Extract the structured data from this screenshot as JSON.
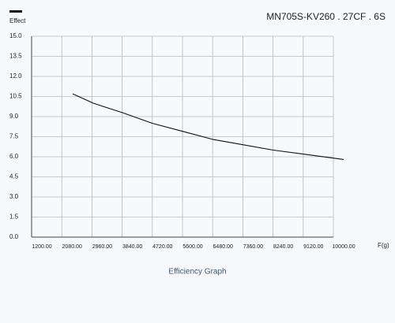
{
  "chart_data": {
    "type": "line",
    "title": "MN705S-KV260 . 27CF . 6S",
    "subtitle": "Efficiency Graph",
    "ylabel": "Effect",
    "xlabel": "F(g)",
    "x": [
      2400,
      3000,
      3840,
      4720,
      5600,
      6480,
      7360,
      8240,
      9120,
      10300
    ],
    "values": [
      10.7,
      10.0,
      9.3,
      8.5,
      7.9,
      7.3,
      6.9,
      6.5,
      6.2,
      5.8
    ],
    "color": "#111111",
    "xlim": [
      1200,
      10000
    ],
    "xticks": [
      {
        "value": 1200,
        "label": "1200.00"
      },
      {
        "value": 2080,
        "label": "2080.00"
      },
      {
        "value": 2960,
        "label": "2960.00"
      },
      {
        "value": 3840,
        "label": "3840.00"
      },
      {
        "value": 4720,
        "label": "4720.00"
      },
      {
        "value": 5600,
        "label": "5600.00"
      },
      {
        "value": 6480,
        "label": "6480.00"
      },
      {
        "value": 7360,
        "label": "7360.00"
      },
      {
        "value": 8240,
        "label": "8240.00"
      },
      {
        "value": 9120,
        "label": "9120.00"
      },
      {
        "value": 10000,
        "label": "10000.00"
      }
    ],
    "ylim": [
      0,
      15
    ],
    "yticks": [
      {
        "value": 0,
        "label": "0.0"
      },
      1.5,
      {
        "value": 3,
        "label": "3.0"
      },
      4.5,
      {
        "value": 6,
        "label": "6.0"
      },
      7.5,
      {
        "value": 9,
        "label": "9.0"
      },
      10.5,
      {
        "value": 12,
        "label": "12.0"
      },
      13.5,
      {
        "value": 15,
        "label": "15.0"
      }
    ],
    "grid": true
  }
}
